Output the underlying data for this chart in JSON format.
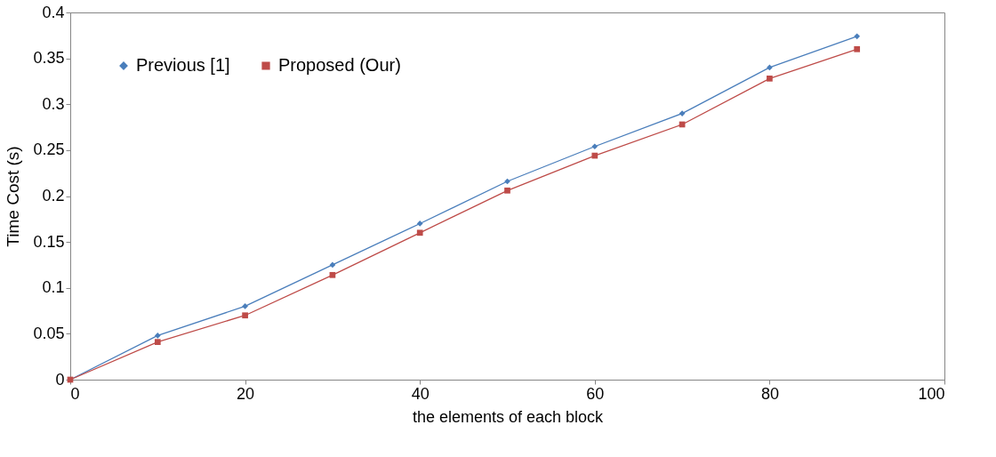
{
  "chart_data": {
    "type": "line",
    "xlabel": "the elements of each block",
    "ylabel": "Time Cost (s)",
    "x": [
      0,
      10,
      20,
      30,
      40,
      50,
      60,
      70,
      80,
      90
    ],
    "series": [
      {
        "name": "Previous [1]",
        "color": "#4a7ebb",
        "marker": "diamond",
        "values": [
          0,
          0.048,
          0.08,
          0.125,
          0.17,
          0.216,
          0.254,
          0.29,
          0.34,
          0.374
        ]
      },
      {
        "name": "Proposed (Our)",
        "color": "#be4b48",
        "marker": "square",
        "values": [
          0,
          0.041,
          0.07,
          0.114,
          0.16,
          0.206,
          0.244,
          0.278,
          0.328,
          0.36
        ]
      }
    ],
    "xlim": [
      0,
      100
    ],
    "xticks": [
      0,
      20,
      40,
      60,
      80,
      100
    ],
    "ylim": [
      0,
      0.4
    ],
    "yticks": [
      0,
      0.05,
      0.1,
      0.15,
      0.2,
      0.25,
      0.3,
      0.35,
      0.4
    ],
    "grid": false,
    "legend": "top left",
    "line_style": "solid"
  }
}
